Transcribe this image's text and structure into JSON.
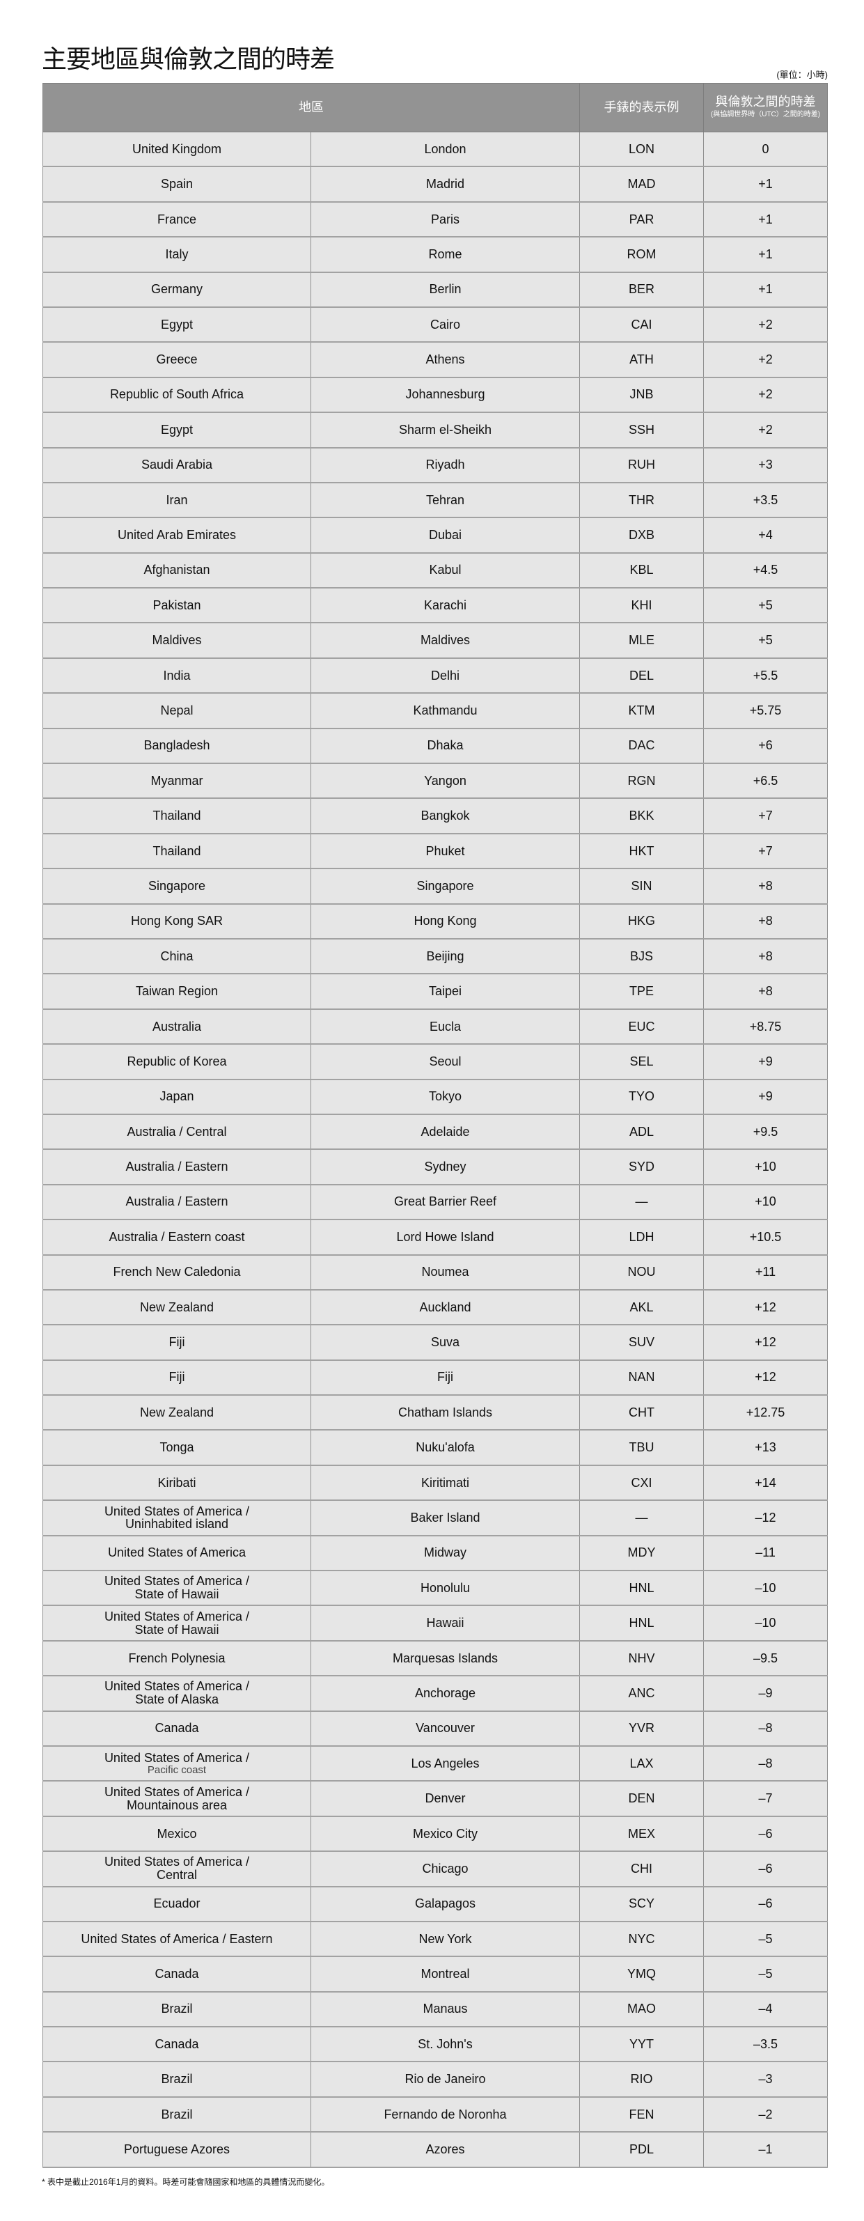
{
  "title": "主要地區與倫敦之間的時差",
  "unit": "(單位：小時)",
  "headers": {
    "region": "地區",
    "watch": "手錶的表示例",
    "diff": "與倫敦之間的時差",
    "diff_sub": "(與協調世界時（UTC）之間的時差)"
  },
  "rows": [
    {
      "region": "United Kingdom",
      "city": "London",
      "code": "LON",
      "diff": "0"
    },
    {
      "region": "Spain",
      "city": "Madrid",
      "code": "MAD",
      "diff": "+1"
    },
    {
      "region": "France",
      "city": "Paris",
      "code": "PAR",
      "diff": "+1"
    },
    {
      "region": "Italy",
      "city": "Rome",
      "code": "ROM",
      "diff": "+1"
    },
    {
      "region": "Germany",
      "city": "Berlin",
      "code": "BER",
      "diff": "+1"
    },
    {
      "region": "Egypt",
      "city": "Cairo",
      "code": "CAI",
      "diff": "+2"
    },
    {
      "region": "Greece",
      "city": "Athens",
      "code": "ATH",
      "diff": "+2"
    },
    {
      "region": "Republic of South Africa",
      "city": "Johannesburg",
      "code": "JNB",
      "diff": "+2"
    },
    {
      "region": "Egypt",
      "city": "Sharm el-Sheikh",
      "code": "SSH",
      "diff": "+2"
    },
    {
      "region": "Saudi Arabia",
      "city": "Riyadh",
      "code": "RUH",
      "diff": "+3"
    },
    {
      "region": "Iran",
      "city": "Tehran",
      "code": "THR",
      "diff": "+3.5"
    },
    {
      "region": "United Arab Emirates",
      "city": "Dubai",
      "code": "DXB",
      "diff": "+4"
    },
    {
      "region": "Afghanistan",
      "city": "Kabul",
      "code": "KBL",
      "diff": "+4.5"
    },
    {
      "region": "Pakistan",
      "city": "Karachi",
      "code": "KHI",
      "diff": "+5"
    },
    {
      "region": "Maldives",
      "city": "Maldives",
      "code": "MLE",
      "diff": "+5"
    },
    {
      "region": "India",
      "city": "Delhi",
      "code": "DEL",
      "diff": "+5.5"
    },
    {
      "region": "Nepal",
      "city": "Kathmandu",
      "code": "KTM",
      "diff": "+5.75"
    },
    {
      "region": "Bangladesh",
      "city": "Dhaka",
      "code": "DAC",
      "diff": "+6"
    },
    {
      "region": "Myanmar",
      "city": "Yangon",
      "code": "RGN",
      "diff": "+6.5"
    },
    {
      "region": "Thailand",
      "city": "Bangkok",
      "code": "BKK",
      "diff": "+7"
    },
    {
      "region": "Thailand",
      "city": "Phuket",
      "code": "HKT",
      "diff": "+7"
    },
    {
      "region": "Singapore",
      "city": "Singapore",
      "code": "SIN",
      "diff": "+8"
    },
    {
      "region": "Hong Kong SAR",
      "city": "Hong Kong",
      "code": "HKG",
      "diff": "+8"
    },
    {
      "region": "China",
      "city": "Beijing",
      "code": "BJS",
      "diff": "+8"
    },
    {
      "region": "Taiwan Region",
      "city": "Taipei",
      "code": "TPE",
      "diff": "+8"
    },
    {
      "region": "Australia",
      "city": "Eucla",
      "code": "EUC",
      "diff": "+8.75"
    },
    {
      "region": "Republic of Korea",
      "city": "Seoul",
      "code": "SEL",
      "diff": "+9"
    },
    {
      "region": "Japan",
      "city": "Tokyo",
      "code": "TYO",
      "diff": "+9"
    },
    {
      "region": "Australia / Central",
      "city": "Adelaide",
      "code": "ADL",
      "diff": "+9.5"
    },
    {
      "region": "Australia / Eastern",
      "city": "Sydney",
      "code": "SYD",
      "diff": "+10"
    },
    {
      "region": "Australia / Eastern",
      "city": "Great Barrier Reef",
      "code": "—",
      "diff": "+10"
    },
    {
      "region": "Australia / Eastern coast",
      "city": "Lord Howe Island",
      "code": "LDH",
      "diff": "+10.5"
    },
    {
      "region": "French New Caledonia",
      "city": "Noumea",
      "code": "NOU",
      "diff": "+11"
    },
    {
      "region": "New Zealand",
      "city": "Auckland",
      "code": "AKL",
      "diff": "+12"
    },
    {
      "region": "Fiji",
      "city": "Suva",
      "code": "SUV",
      "diff": "+12"
    },
    {
      "region": "Fiji",
      "city": "Fiji",
      "code": "NAN",
      "diff": "+12"
    },
    {
      "region": "New Zealand",
      "city": "Chatham Islands",
      "code": "CHT",
      "diff": "+12.75"
    },
    {
      "region": "Tonga",
      "city": "Nuku'alofa",
      "code": "TBU",
      "diff": "+13"
    },
    {
      "region": "Kiribati",
      "city": "Kiritimati",
      "code": "CXI",
      "diff": "+14"
    },
    {
      "region": "United States of America /",
      "region2": "Uninhabited island",
      "city": "Baker Island",
      "code": "—",
      "diff": "–12"
    },
    {
      "region": "United States of America",
      "city": "Midway",
      "code": "MDY",
      "diff": "–11"
    },
    {
      "region": "United States of America /",
      "region2": "State of Hawaii",
      "city": "Honolulu",
      "code": "HNL",
      "diff": "–10"
    },
    {
      "region": "United States of America /",
      "region2": "State of Hawaii",
      "city": "Hawaii",
      "code": "HNL",
      "diff": "–10"
    },
    {
      "region": "French Polynesia",
      "city": "Marquesas Islands",
      "code": "NHV",
      "diff": "–9.5"
    },
    {
      "region": "United States of America /",
      "region2": "State of Alaska",
      "city": "Anchorage",
      "code": "ANC",
      "diff": "–9"
    },
    {
      "region": "Canada",
      "city": "Vancouver",
      "code": "YVR",
      "diff": "–8"
    },
    {
      "region": "United States of America /",
      "region2": "Pacific coast",
      "small": true,
      "city": "Los Angeles",
      "code": "LAX",
      "diff": "–8"
    },
    {
      "region": "United States of America /",
      "region2": "Mountainous area",
      "city": "Denver",
      "code": "DEN",
      "diff": "–7"
    },
    {
      "region": "Mexico",
      "city": "Mexico City",
      "code": "MEX",
      "diff": "–6"
    },
    {
      "region": "United States of America /",
      "region2": "Central",
      "city": "Chicago",
      "code": "CHI",
      "diff": "–6"
    },
    {
      "region": "Ecuador",
      "city": "Galapagos",
      "code": "SCY",
      "diff": "–6"
    },
    {
      "region": "United States of America / Eastern",
      "city": "New York",
      "code": "NYC",
      "diff": "–5"
    },
    {
      "region": "Canada",
      "city": "Montreal",
      "code": "YMQ",
      "diff": "–5"
    },
    {
      "region": "Brazil",
      "city": "Manaus",
      "code": "MAO",
      "diff": "–4"
    },
    {
      "region": "Canada",
      "city": "St. John's",
      "code": "YYT",
      "diff": "–3.5"
    },
    {
      "region": "Brazil",
      "city": "Rio de Janeiro",
      "code": "RIO",
      "diff": "–3"
    },
    {
      "region": "Brazil",
      "city": "Fernando de Noronha",
      "code": "FEN",
      "diff": "–2"
    },
    {
      "region": "Portuguese Azores",
      "city": "Azores",
      "code": "PDL",
      "diff": "–1"
    }
  ],
  "note": "* 表中是截止2016年1月的資料。時差可能會隨國家和地區的具體情況而變化。",
  "colors": {
    "header_bg": "#939393",
    "row_bg": "#e6e6e6",
    "border": "#a2a2a2"
  }
}
